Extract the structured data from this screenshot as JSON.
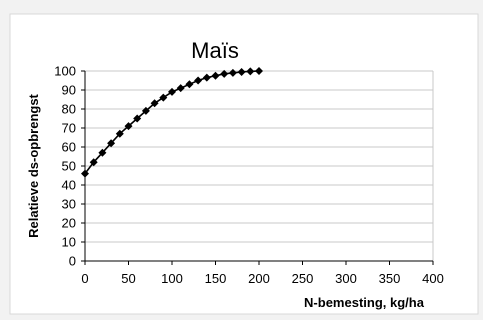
{
  "chart_data": {
    "type": "line",
    "title": "Maïs",
    "xlabel": "N-bemesting, kg/ha",
    "ylabel": "Relatieve ds-opbrengst",
    "xlim": [
      0,
      400
    ],
    "ylim": [
      0,
      100
    ],
    "xticks": [
      0,
      50,
      100,
      150,
      200,
      250,
      300,
      350,
      400
    ],
    "yticks": [
      0,
      10,
      20,
      30,
      40,
      50,
      60,
      70,
      80,
      90,
      100
    ],
    "grid": true,
    "legend": "none",
    "marker": "diamond",
    "series": [
      {
        "color": "#000000",
        "x": [
          0,
          10,
          20,
          30,
          40,
          50,
          60,
          70,
          80,
          90,
          100,
          110,
          120,
          130,
          140,
          150,
          160,
          170,
          180,
          190,
          200
        ],
        "y": [
          46,
          52,
          57,
          62,
          67,
          71,
          75,
          79,
          83,
          86,
          89,
          91,
          93,
          95,
          96.5,
          97.5,
          98.5,
          99,
          99.5,
          99.8,
          100
        ]
      }
    ]
  }
}
